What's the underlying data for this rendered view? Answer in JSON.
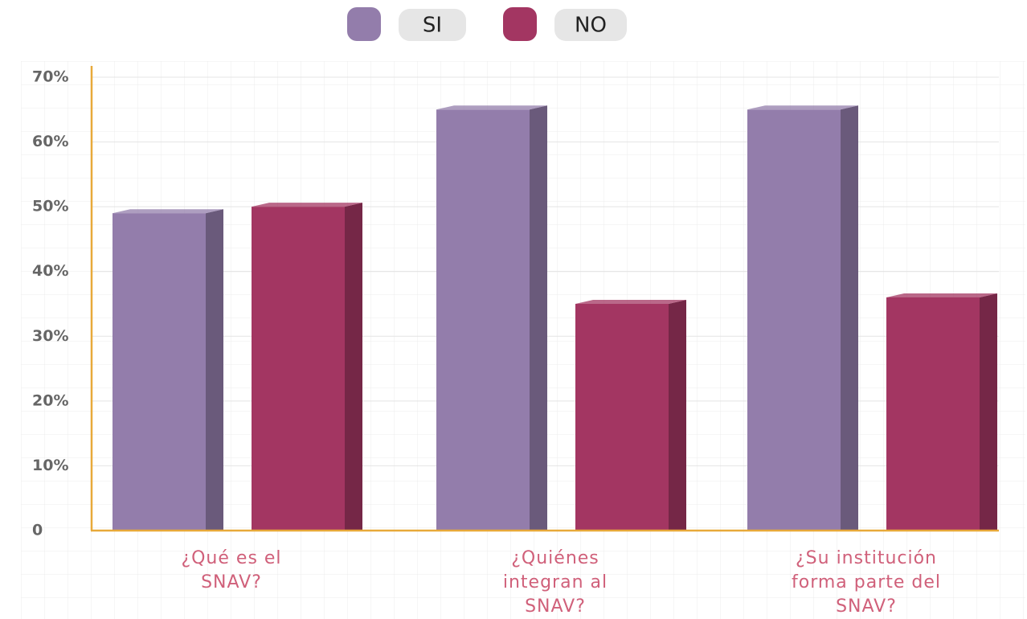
{
  "chart_data": {
    "type": "bar",
    "categories": [
      "¿Qué es el SNAV?",
      "¿Quiénes integran al SNAV?",
      "¿Su institución forma parte del SNAV?"
    ],
    "series": [
      {
        "name": "SI",
        "color": "#937dab",
        "values": [
          49,
          65,
          65
        ]
      },
      {
        "name": "NO",
        "color": "#a33662",
        "values": [
          50,
          35,
          36
        ]
      }
    ],
    "ylim": [
      0,
      70
    ],
    "yticks": [
      0,
      {
        "value": 10,
        "label": "10%"
      },
      {
        "value": 20,
        "label": "20%"
      },
      {
        "value": 30,
        "label": "30%"
      },
      {
        "value": 40,
        "label": "40%"
      },
      {
        "value": 50,
        "label": "50%"
      },
      {
        "value": 60,
        "label": "60%"
      },
      {
        "value": 70,
        "label": "70%"
      }
    ],
    "grid": true
  }
}
